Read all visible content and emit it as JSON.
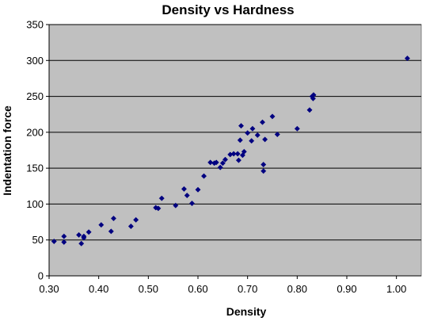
{
  "chart_data": {
    "type": "scatter",
    "title": "Density vs Hardness",
    "xlabel": "Density",
    "ylabel": "Indentation force",
    "xlim": [
      0.3,
      1.05
    ],
    "ylim": [
      0,
      350
    ],
    "x_ticks": [
      "0.30",
      "0.40",
      "0.50",
      "0.60",
      "0.70",
      "0.80",
      "0.90",
      "1.00"
    ],
    "y_ticks": [
      "0",
      "50",
      "100",
      "150",
      "200",
      "250",
      "300",
      "350"
    ],
    "x_tick_values": [
      0.3,
      0.4,
      0.5,
      0.6,
      0.7,
      0.8,
      0.9,
      1.0
    ],
    "y_tick_values": [
      0,
      50,
      100,
      150,
      200,
      250,
      300,
      350
    ],
    "grid": "horizontal major gridlines",
    "legend": "none",
    "colors": {
      "plot_background": "#c0c0c0",
      "marker": "#000080",
      "gridline": "#000000"
    },
    "marker_shape": "diamond",
    "series": [
      {
        "points": [
          [
            0.31,
            48
          ],
          [
            0.33,
            55
          ],
          [
            0.33,
            47
          ],
          [
            0.36,
            57
          ],
          [
            0.365,
            45
          ],
          [
            0.37,
            55
          ],
          [
            0.37,
            53
          ],
          [
            0.38,
            61
          ],
          [
            0.405,
            71
          ],
          [
            0.425,
            62
          ],
          [
            0.43,
            80
          ],
          [
            0.465,
            69
          ],
          [
            0.475,
            78
          ],
          [
            0.515,
            95
          ],
          [
            0.52,
            94
          ],
          [
            0.527,
            108
          ],
          [
            0.555,
            98
          ],
          [
            0.572,
            121
          ],
          [
            0.578,
            112
          ],
          [
            0.588,
            101
          ],
          [
            0.6,
            120
          ],
          [
            0.612,
            139
          ],
          [
            0.625,
            158
          ],
          [
            0.633,
            157
          ],
          [
            0.637,
            158
          ],
          [
            0.645,
            151
          ],
          [
            0.65,
            157
          ],
          [
            0.655,
            162
          ],
          [
            0.665,
            169
          ],
          [
            0.672,
            170
          ],
          [
            0.68,
            170
          ],
          [
            0.682,
            161
          ],
          [
            0.685,
            189
          ],
          [
            0.687,
            209
          ],
          [
            0.69,
            168
          ],
          [
            0.693,
            173
          ],
          [
            0.7,
            199
          ],
          [
            0.708,
            188
          ],
          [
            0.71,
            205
          ],
          [
            0.72,
            196
          ],
          [
            0.73,
            214
          ],
          [
            0.732,
            155
          ],
          [
            0.732,
            146
          ],
          [
            0.735,
            190
          ],
          [
            0.75,
            222
          ],
          [
            0.76,
            197
          ],
          [
            0.8,
            205
          ],
          [
            0.825,
            231
          ],
          [
            0.83,
            250
          ],
          [
            0.832,
            247
          ],
          [
            0.833,
            252
          ],
          [
            1.022,
            303
          ]
        ]
      }
    ]
  }
}
